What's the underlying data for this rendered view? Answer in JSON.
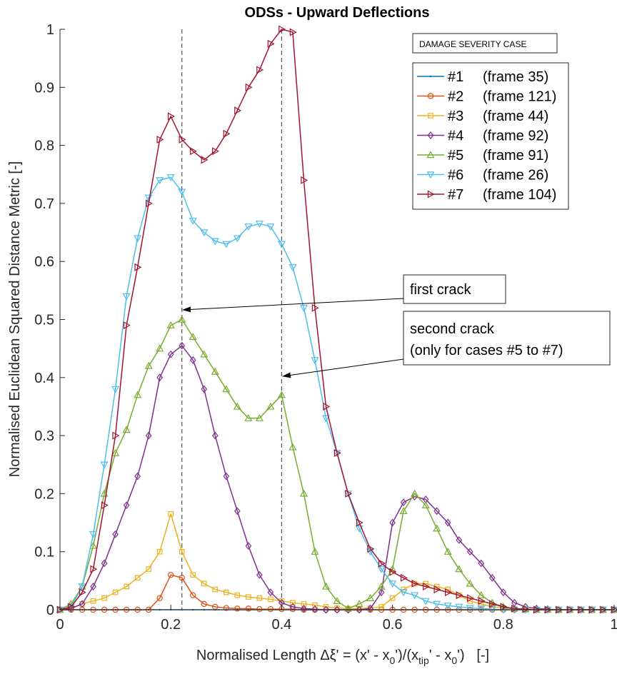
{
  "chart_data": {
    "type": "line",
    "title": "ODSs - Upward Deflections",
    "ylabel": "Normalised Euclidean Squared Distance Metric   [-]",
    "xlabel_parts": {
      "pre": "Normalised Length ",
      "delta": "Δξ' = (x' - x",
      "sub0": "0",
      "mid": "')/(x",
      "subtip": "tip",
      "mid2": "' - x",
      "sub0b": "0",
      "post": "')   [-]"
    },
    "xlim": [
      0,
      1
    ],
    "ylim": [
      0,
      1
    ],
    "x_ticks": [
      "0",
      "0.2",
      "0.4",
      "0.6",
      "0.8",
      "1"
    ],
    "y_ticks": [
      "0",
      "0.1",
      "0.2",
      "0.3",
      "0.4",
      "0.5",
      "0.6",
      "0.7",
      "0.8",
      "0.9",
      "1"
    ],
    "grid": false,
    "legend_title": "DAMAGE SEVERITY CASE",
    "legend_position": "top-right",
    "vlines": [
      0.22,
      0.4
    ],
    "annotations": [
      {
        "lines": [
          "first crack"
        ],
        "target": [
          0.22,
          0.515
        ]
      },
      {
        "lines": [
          "second crack",
          "(only for cases #5 to #7)"
        ],
        "target": [
          0.4,
          0.4
        ]
      }
    ],
    "x": [
      0,
      0.02,
      0.04,
      0.06,
      0.08,
      0.1,
      0.12,
      0.14,
      0.16,
      0.18,
      0.2,
      0.22,
      0.24,
      0.26,
      0.28,
      0.3,
      0.32,
      0.34,
      0.36,
      0.38,
      0.4,
      0.42,
      0.44,
      0.46,
      0.48,
      0.5,
      0.52,
      0.54,
      0.56,
      0.58,
      0.6,
      0.62,
      0.64,
      0.66,
      0.68,
      0.7,
      0.72,
      0.74,
      0.76,
      0.78,
      0.8,
      0.82,
      0.84,
      0.86,
      0.88,
      0.9,
      0.92,
      0.94,
      0.96,
      0.98,
      1
    ],
    "series": [
      {
        "name": "#1",
        "frame": "(frame 35)",
        "color": "#0072BD",
        "marker": "dot",
        "values": [
          0,
          0,
          0,
          0,
          0,
          0,
          0,
          0,
          0,
          0,
          0,
          0,
          0,
          0,
          0,
          0,
          0,
          0,
          0,
          0,
          0,
          0,
          0,
          0,
          0,
          0,
          0,
          0,
          0,
          0,
          0,
          0,
          0,
          0,
          0,
          0,
          0,
          0,
          0,
          0,
          0,
          0,
          0,
          0,
          0,
          0,
          0,
          0,
          0,
          0,
          0
        ]
      },
      {
        "name": "#2",
        "frame": "(frame 121)",
        "color": "#D95319",
        "marker": "circle",
        "values": [
          0,
          0,
          0,
          0,
          0,
          0,
          0,
          0,
          0,
          0.02,
          0.06,
          0.055,
          0.025,
          0.01,
          0.005,
          0.003,
          0.002,
          0.002,
          0.001,
          0.001,
          0.001,
          0.001,
          0,
          0,
          0,
          0,
          0,
          0,
          0,
          0,
          0,
          0,
          0,
          0,
          0,
          0,
          0,
          0,
          0,
          0,
          0,
          0,
          0,
          0,
          0,
          0,
          0,
          0,
          0,
          0,
          0
        ]
      },
      {
        "name": "#3",
        "frame": "(frame 44)",
        "color": "#EDB120",
        "marker": "square",
        "values": [
          0,
          0.003,
          0.01,
          0.015,
          0.02,
          0.03,
          0.04,
          0.055,
          0.07,
          0.1,
          0.165,
          0.1,
          0.06,
          0.045,
          0.035,
          0.03,
          0.025,
          0.022,
          0.02,
          0.018,
          0.015,
          0.012,
          0.01,
          0.008,
          0.005,
          0.003,
          0.002,
          0.002,
          0.003,
          0.005,
          0.02,
          0.035,
          0.045,
          0.045,
          0.04,
          0.035,
          0.025,
          0.015,
          0.01,
          0.005,
          0.003,
          0.001,
          0,
          0,
          0,
          0,
          0,
          0,
          0,
          0,
          0
        ]
      },
      {
        "name": "#4",
        "frame": "(frame 92)",
        "color": "#7E2F8E",
        "marker": "diamond",
        "values": [
          0,
          0.002,
          0.01,
          0.04,
          0.08,
          0.13,
          0.18,
          0.23,
          0.3,
          0.4,
          0.44,
          0.455,
          0.43,
          0.38,
          0.3,
          0.23,
          0.17,
          0.11,
          0.06,
          0.03,
          0.012,
          0.005,
          0.002,
          0.001,
          0,
          0,
          0,
          0,
          0.002,
          0.03,
          0.15,
          0.185,
          0.195,
          0.19,
          0.17,
          0.15,
          0.12,
          0.1,
          0.08,
          0.055,
          0.03,
          0.012,
          0.005,
          0.002,
          0.001,
          0,
          0,
          0,
          0,
          0,
          0
        ]
      },
      {
        "name": "#5",
        "frame": "(frame 91)",
        "color": "#77AC30",
        "marker": "triangle-up",
        "values": [
          0,
          0.01,
          0.04,
          0.11,
          0.2,
          0.27,
          0.31,
          0.37,
          0.42,
          0.45,
          0.49,
          0.5,
          0.47,
          0.44,
          0.41,
          0.38,
          0.35,
          0.33,
          0.33,
          0.35,
          0.37,
          0.28,
          0.2,
          0.1,
          0.04,
          0.015,
          0.002,
          0.01,
          0.02,
          0.04,
          0.07,
          0.17,
          0.2,
          0.18,
          0.14,
          0.1,
          0.07,
          0.045,
          0.025,
          0.012,
          0.005,
          0.002,
          0.001,
          0,
          0,
          0,
          0,
          0,
          0,
          0,
          0
        ]
      },
      {
        "name": "#6",
        "frame": "(frame 26)",
        "color": "#4DBEEE",
        "marker": "triangle-down",
        "values": [
          0,
          0.005,
          0.04,
          0.13,
          0.25,
          0.38,
          0.54,
          0.64,
          0.71,
          0.74,
          0.745,
          0.72,
          0.67,
          0.65,
          0.635,
          0.63,
          0.64,
          0.66,
          0.665,
          0.66,
          0.63,
          0.59,
          0.52,
          0.43,
          0.33,
          0.27,
          0.2,
          0.14,
          0.1,
          0.07,
          0.045,
          0.03,
          0.025,
          0.015,
          0.01,
          0.007,
          0.005,
          0.003,
          0.002,
          0.001,
          0,
          0,
          0,
          0,
          0,
          0,
          0,
          0,
          0,
          0,
          0
        ]
      },
      {
        "name": "#7",
        "frame": "(frame 104)",
        "color": "#A2142F",
        "marker": "triangle-right",
        "values": [
          0,
          0.005,
          0.03,
          0.07,
          0.18,
          0.3,
          0.49,
          0.59,
          0.7,
          0.81,
          0.85,
          0.81,
          0.79,
          0.775,
          0.79,
          0.82,
          0.86,
          0.9,
          0.93,
          0.975,
          1,
          0.995,
          0.74,
          0.52,
          0.35,
          0.27,
          0.2,
          0.15,
          0.105,
          0.08,
          0.065,
          0.055,
          0.045,
          0.04,
          0.035,
          0.03,
          0.025,
          0.02,
          0.015,
          0.01,
          0.005,
          0.002,
          0.001,
          0,
          0,
          0,
          0,
          0,
          0,
          0,
          0
        ]
      }
    ]
  }
}
